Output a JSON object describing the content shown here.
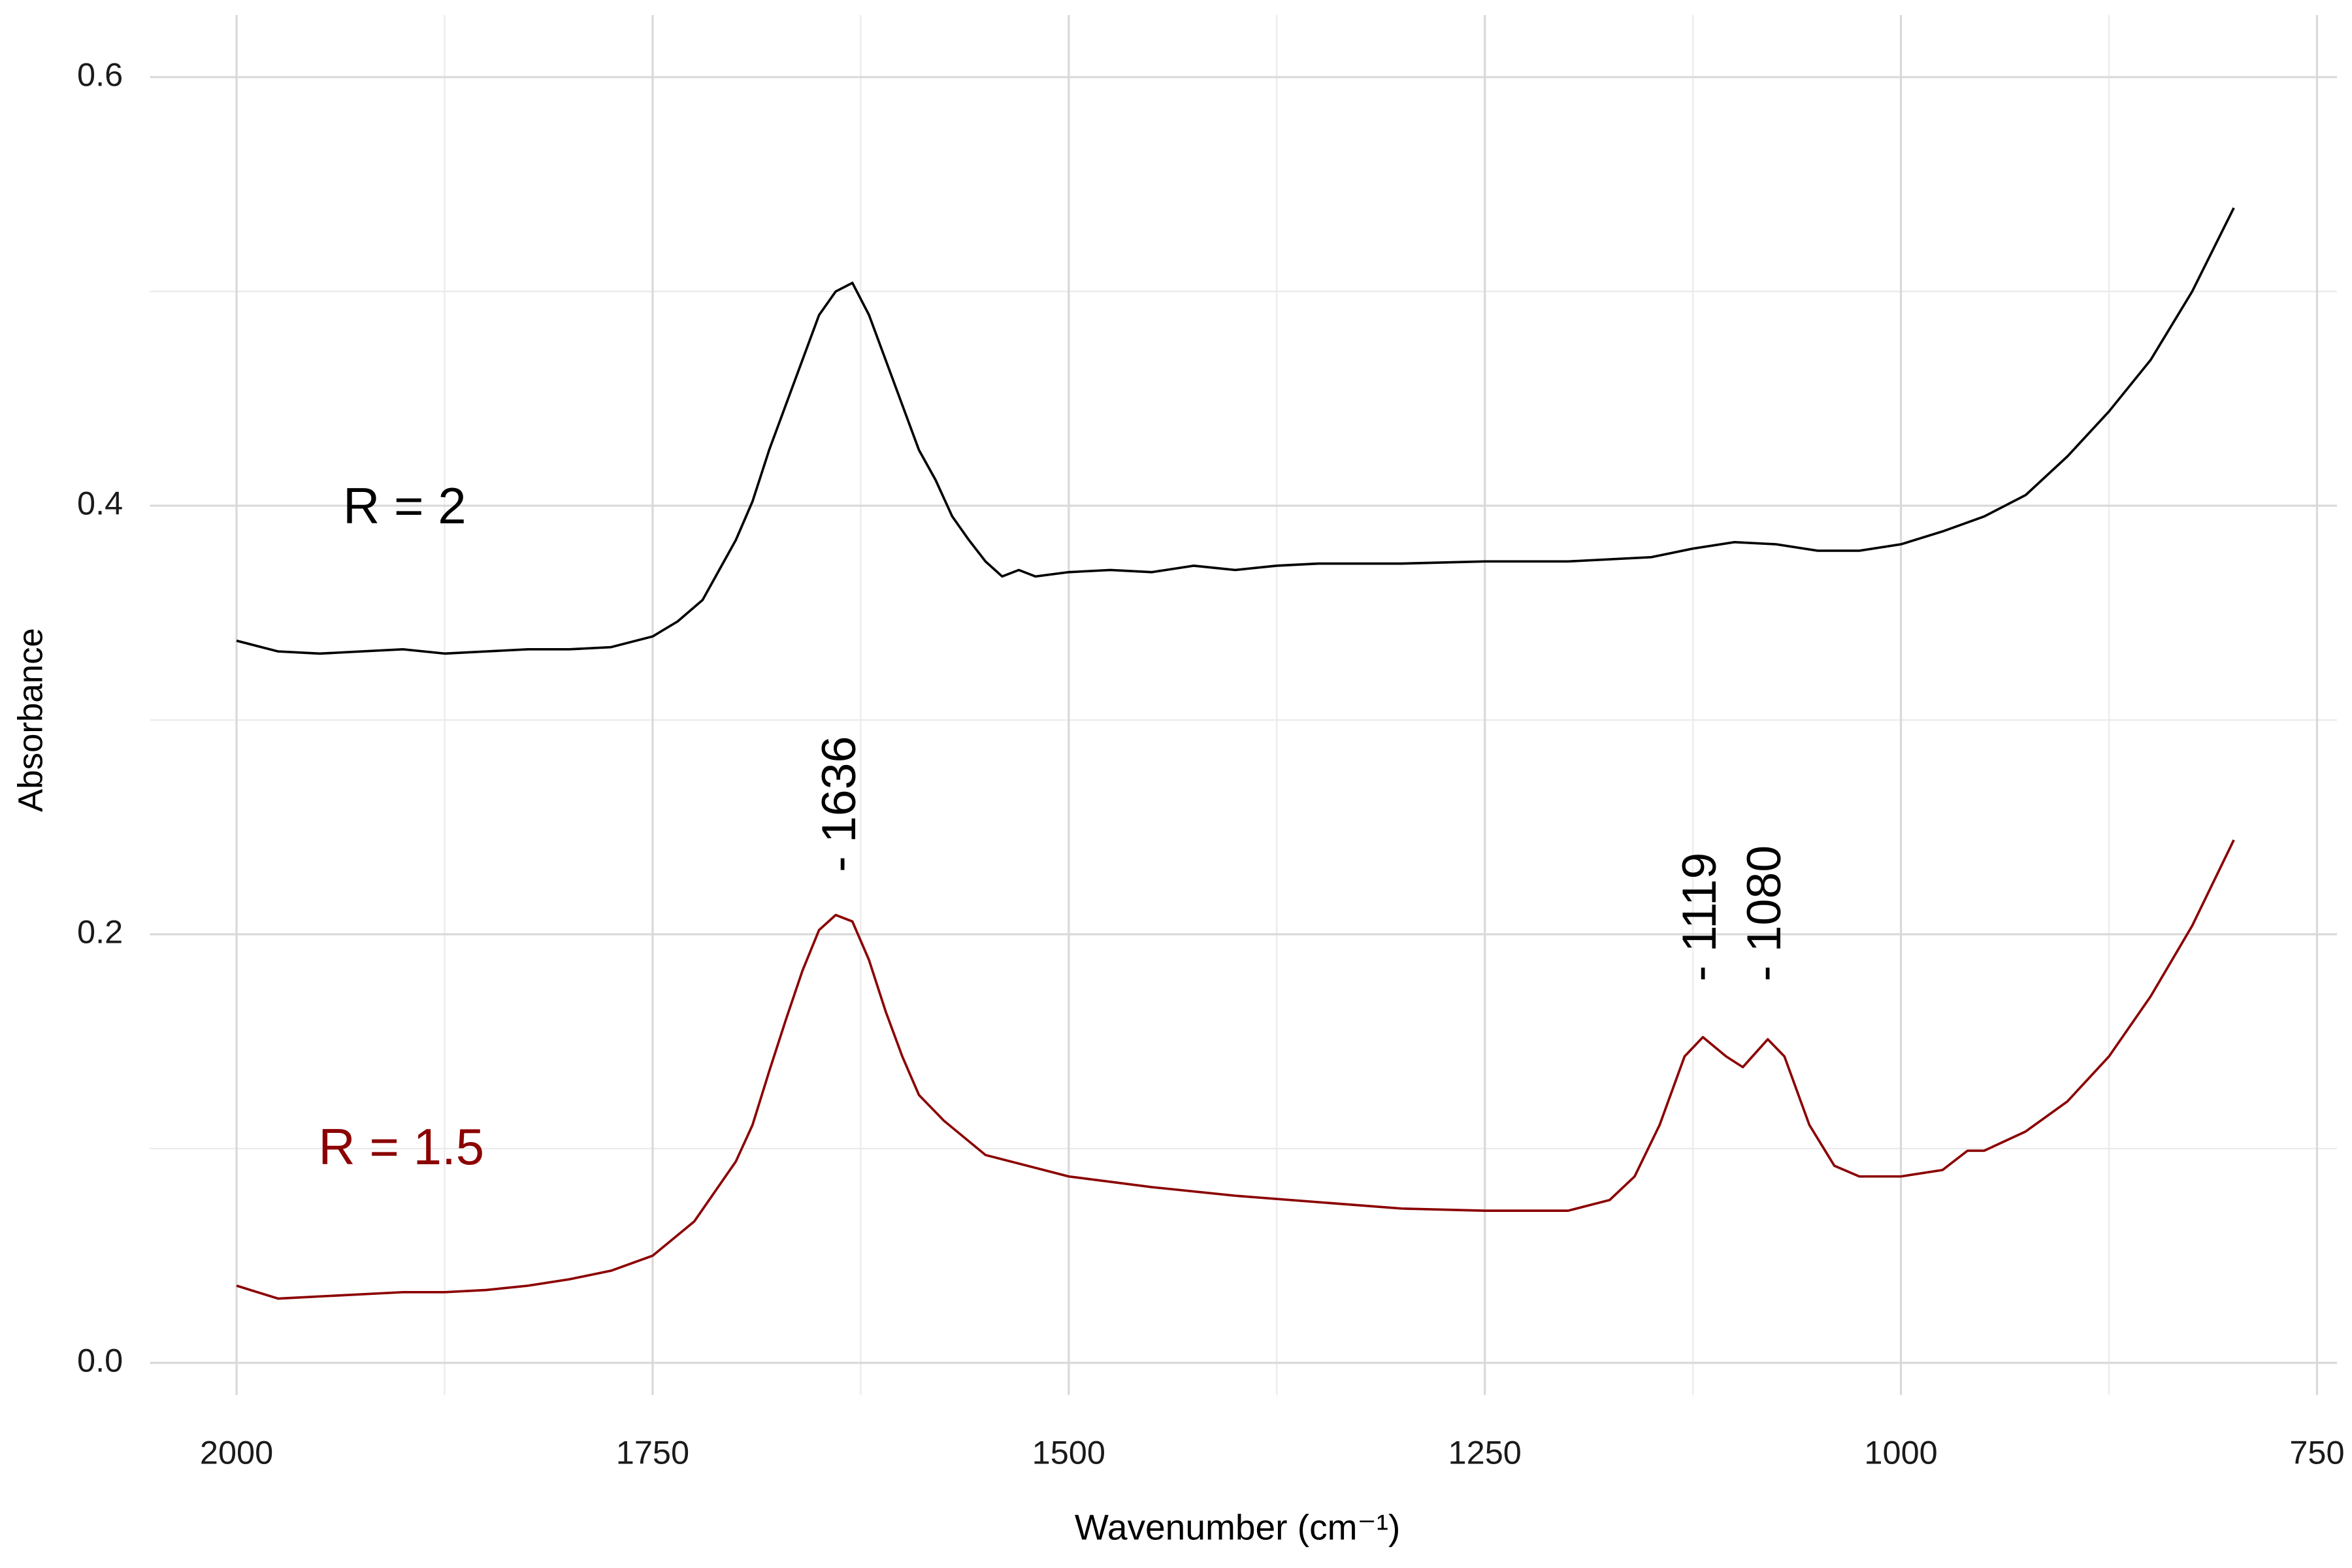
{
  "chart_data": {
    "type": "line",
    "x_label": "Wavenumber (cm⁻¹)",
    "y_label": "Absorbance",
    "xlim": [
      2052,
      738
    ],
    "ylim": [
      -0.015,
      0.629
    ],
    "xticks": [
      2000,
      1750,
      1500,
      1250,
      1000,
      750
    ],
    "yticks": [
      {
        "value": 0,
        "label": "0.0"
      },
      0.2,
      0.4,
      0.6
    ],
    "x_minor_grid": [
      1875,
      1625,
      1375,
      1125,
      875
    ],
    "y_minor_grid": [
      0.1,
      0.3,
      0.5
    ],
    "grid": true,
    "series": [
      {
        "name": "R = 2",
        "color": "#000000",
        "x": [
          2000,
          1975,
          1950,
          1925,
          1900,
          1875,
          1850,
          1825,
          1800,
          1775,
          1750,
          1735,
          1720,
          1710,
          1700,
          1690,
          1680,
          1670,
          1660,
          1650,
          1640,
          1630,
          1620,
          1610,
          1600,
          1590,
          1580,
          1570,
          1560,
          1550,
          1540,
          1530,
          1520,
          1500,
          1475,
          1450,
          1425,
          1400,
          1375,
          1350,
          1300,
          1250,
          1200,
          1150,
          1125,
          1100,
          1075,
          1050,
          1025,
          1000,
          975,
          950,
          925,
          900,
          875,
          850,
          825,
          800
        ],
        "values": [
          0.337,
          0.332,
          0.331,
          0.332,
          0.333,
          0.331,
          0.332,
          0.333,
          0.333,
          0.334,
          0.339,
          0.346,
          0.356,
          0.37,
          0.384,
          0.402,
          0.426,
          0.447,
          0.468,
          0.489,
          0.5,
          0.504,
          0.489,
          0.468,
          0.447,
          0.426,
          0.412,
          0.395,
          0.384,
          0.374,
          0.367,
          0.37,
          0.367,
          0.369,
          0.37,
          0.369,
          0.372,
          0.37,
          0.372,
          0.373,
          0.373,
          0.374,
          0.374,
          0.376,
          0.38,
          0.383,
          0.382,
          0.379,
          0.379,
          0.382,
          0.388,
          0.395,
          0.405,
          0.423,
          0.444,
          0.468,
          0.5,
          0.539
        ]
      },
      {
        "name": "R = 1.5",
        "color": "#8b0000",
        "x": [
          2000,
          1975,
          1950,
          1925,
          1900,
          1875,
          1850,
          1825,
          1800,
          1775,
          1750,
          1725,
          1700,
          1690,
          1680,
          1670,
          1660,
          1650,
          1640,
          1630,
          1620,
          1610,
          1600,
          1590,
          1575,
          1550,
          1525,
          1500,
          1450,
          1400,
          1350,
          1300,
          1250,
          1200,
          1175,
          1160,
          1145,
          1130,
          1119,
          1105,
          1095,
          1080,
          1070,
          1055,
          1040,
          1025,
          1000,
          975,
          960,
          950,
          925,
          900,
          875,
          850,
          825,
          800
        ],
        "values": [
          0.036,
          0.03,
          0.031,
          0.032,
          0.033,
          0.033,
          0.034,
          0.036,
          0.039,
          0.043,
          0.05,
          0.066,
          0.094,
          0.111,
          0.136,
          0.16,
          0.183,
          0.202,
          0.209,
          0.206,
          0.188,
          0.164,
          0.143,
          0.125,
          0.113,
          0.097,
          0.092,
          0.087,
          0.082,
          0.078,
          0.075,
          0.072,
          0.071,
          0.071,
          0.076,
          0.087,
          0.111,
          0.143,
          0.152,
          0.143,
          0.138,
          0.151,
          0.143,
          0.111,
          0.092,
          0.087,
          0.087,
          0.09,
          0.099,
          0.099,
          0.108,
          0.122,
          0.143,
          0.171,
          0.204,
          0.244
        ]
      }
    ],
    "series_labels": [
      {
        "text": "R = 2",
        "x": 1899,
        "y": 0.398
      },
      {
        "text": "R = 1.5",
        "x": 1901,
        "y": 0.099
      }
    ],
    "annotations": [
      {
        "text": "- 1636",
        "x": 1636,
        "y": 0.229
      },
      {
        "text": "- 1119",
        "x": 1119,
        "y": 0.178
      },
      {
        "text": "- 1080",
        "x": 1080,
        "y": 0.178
      }
    ]
  }
}
